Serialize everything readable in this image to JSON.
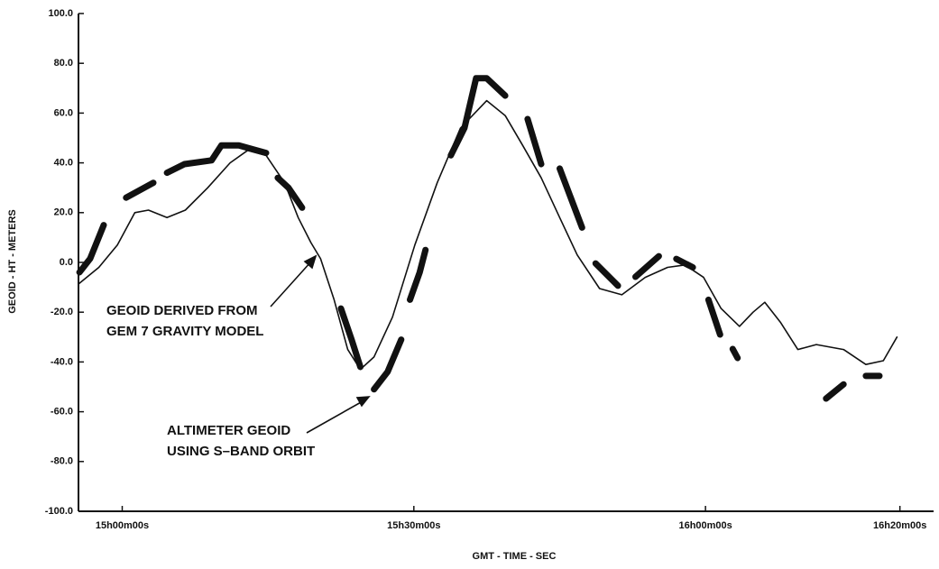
{
  "chart_data": {
    "type": "line",
    "ylabel": "GEOID - HT - METERS",
    "xlabel": "GMT - TIME - SEC",
    "annotations": [
      "GEOID DERIVED FROM",
      "GEM 7 GRAVITY MODEL",
      "ALTIMETER GEOID",
      "USING S–BAND ORBIT"
    ],
    "xlim": [
      -4.5,
      83
    ],
    "xticks": [
      {
        "value": 0,
        "label": "15h00m00s"
      },
      {
        "value": 30,
        "label": "15h30m00s"
      },
      {
        "value": 60,
        "label": "16h00m00s"
      },
      {
        "value": 80,
        "label": "16h20m00s"
      }
    ],
    "ylim": [
      -100,
      100
    ],
    "yticks": [
      {
        "value": 100,
        "label": "100.0"
      },
      {
        "value": 80,
        "label": "80.0"
      },
      {
        "value": 60,
        "label": "60.0"
      },
      {
        "value": 40,
        "label": "40.0"
      },
      {
        "value": 20,
        "label": "20.0"
      },
      {
        "value": 0,
        "label": "0.0"
      },
      {
        "value": -20,
        "label": "-20.0"
      },
      {
        "value": -40,
        "label": "-40.0"
      },
      {
        "value": -60,
        "label": "-60.0"
      },
      {
        "value": -80,
        "label": "-80.0"
      },
      {
        "value": -100,
        "label": "-100.0"
      }
    ],
    "grid": false,
    "series": [
      {
        "name": "GEM 7 GRAVITY MODEL",
        "color": "#111111",
        "width": 1.6,
        "x": [
          -4.5,
          -2.4,
          -0.5,
          1.3,
          2.7,
          4.6,
          6.5,
          8.8,
          11.1,
          12.9,
          14.8,
          16.7,
          18.1,
          19.4,
          20.4,
          21.8,
          23.2,
          24.5,
          25.9,
          27.8,
          30.1,
          32.4,
          34.8,
          37.5,
          39.4,
          41.2,
          43.1,
          45.0,
          46.8,
          49.1,
          51.4,
          53.8,
          56.1,
          57.9,
          59.8,
          61.6,
          63.5,
          64.9,
          66.1,
          67.7,
          69.5,
          71.4,
          74.2,
          76.5,
          78.3,
          79.7
        ],
        "values": [
          -8.7,
          -2,
          7,
          20,
          21,
          18,
          21,
          30,
          40,
          45,
          43,
          32,
          18,
          8,
          1.5,
          -15,
          -35,
          -43,
          -38,
          -22,
          7,
          32,
          54,
          65,
          59,
          47,
          34,
          18,
          3,
          -10.5,
          -13,
          -6,
          -2,
          -1,
          -6,
          -18.5,
          -25.7,
          -20,
          -16,
          -24,
          -35,
          -33,
          -35,
          -41,
          -39.5,
          -30
        ]
      },
      {
        "name": "ALTIMETER GEOID",
        "color": "#111111",
        "width": 7,
        "x": [
          -4.4,
          -3.3,
          -1.9,
          null,
          0.4,
          3.2,
          null,
          4.6,
          6.4,
          9.2,
          10.2,
          12.0,
          14.8,
          null,
          16.0,
          17.1,
          18.5,
          null,
          22.5,
          23.6,
          24.5,
          null,
          25.9,
          27.3,
          28.7,
          null,
          29.6,
          30.6,
          31.2,
          null,
          33.8,
          35.2,
          36.4,
          37.5,
          39.4,
          null,
          41.7,
          43.1,
          null,
          45.0,
          47.3,
          null,
          48.7,
          51.0,
          null,
          52.8,
          55.2,
          null,
          57.0,
          58.7,
          null,
          60.3,
          61.5,
          null,
          62.8,
          63.3,
          null,
          72.4,
          74.2,
          null,
          76.5,
          77.9
        ],
        "values": [
          -4,
          1.5,
          15,
          null,
          26,
          32,
          null,
          36,
          39.5,
          41,
          47,
          47,
          44,
          null,
          34,
          30,
          22,
          null,
          -18.5,
          -31,
          -42,
          null,
          -51,
          -44,
          -31,
          null,
          -15,
          -4,
          5,
          null,
          43,
          54,
          74,
          74,
          67,
          null,
          57.6,
          39.5,
          null,
          37.7,
          14,
          null,
          -0.4,
          -9.4,
          null,
          -5.8,
          2.5,
          null,
          1.4,
          -2,
          null,
          -15,
          -29,
          null,
          -34.8,
          -38.4,
          null,
          -54.7,
          -49,
          null,
          -45.6,
          -45.6
        ]
      }
    ]
  }
}
